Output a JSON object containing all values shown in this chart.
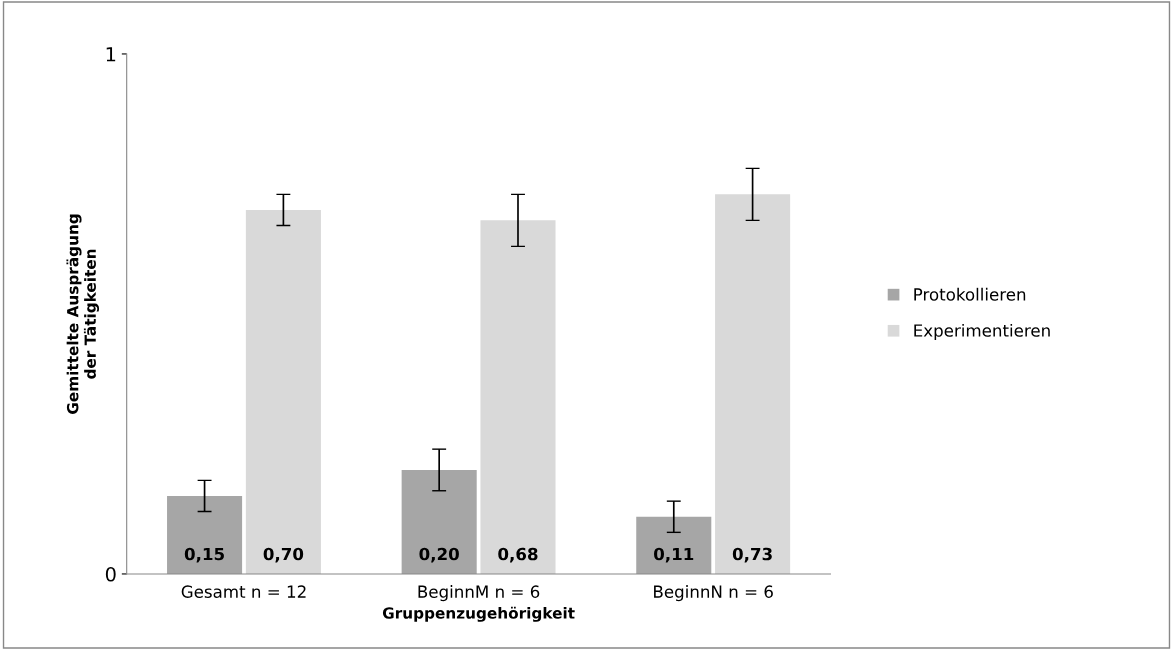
{
  "chart_data": {
    "type": "bar",
    "xlabel": "Gruppenzugehörigkeit",
    "ylabel": "Gemittelte Ausprägung\nder Tätigkeiten",
    "categories": [
      "Gesamt n = 12",
      "BeginnM n = 6",
      "BeginnN n = 6"
    ],
    "series": [
      {
        "name": "Protokollieren",
        "color": "#a6a6a6",
        "values": [
          0.15,
          0.2,
          0.11
        ],
        "errors": [
          0.03,
          0.04,
          0.03
        ],
        "value_labels": [
          "0,15",
          "0,20",
          "0,11"
        ]
      },
      {
        "name": "Experimentieren",
        "color": "#d9d9d9",
        "values": [
          0.7,
          0.68,
          0.73
        ],
        "errors": [
          0.03,
          0.05,
          0.05
        ],
        "value_labels": [
          "0,70",
          "0,68",
          "0,73"
        ]
      }
    ],
    "ylim": [
      0,
      1
    ],
    "yticks": [
      0,
      1
    ],
    "grid": false,
    "legend": "right"
  }
}
